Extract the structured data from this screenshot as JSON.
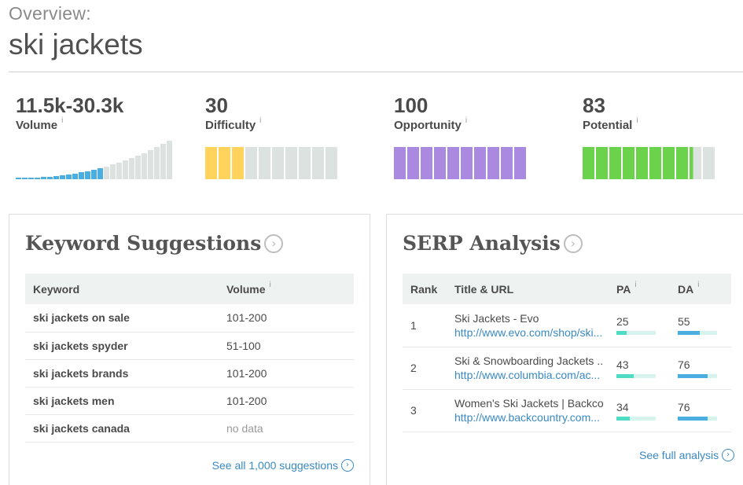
{
  "header": {
    "overview_label": "Overview:",
    "keyword": "ski jackets"
  },
  "metrics": {
    "volume": {
      "value": "11.5k-30.3k",
      "label": "Volume",
      "info": "i"
    },
    "difficulty": {
      "value": "30",
      "label": "Difficulty",
      "info": "i",
      "filled_segments": 3,
      "total_segments": 10,
      "color": "#ffd35c"
    },
    "opportunity": {
      "value": "100",
      "label": "Opportunity",
      "info": "i",
      "filled_segments": 10,
      "total_segments": 10,
      "color": "#a98ae0"
    },
    "potential": {
      "value": "83",
      "label": "Potential",
      "info": "i",
      "filled_segments": 8.3,
      "total_segments": 10,
      "color": "#6bd24b"
    }
  },
  "colors": {
    "empty_segment": "#dbe2e0",
    "volume_active": "#4aaee0",
    "volume_inactive": "#dbe2e0",
    "link": "#3a89c4",
    "pa_bar": "#4fdcc4",
    "da_bar": "#4aaee0",
    "bar_track": "#d6f3ee"
  },
  "keyword_suggestions": {
    "title": "Keyword Suggestions",
    "columns": [
      "Keyword",
      "Volume"
    ],
    "volume_info": "i",
    "rows": [
      {
        "keyword": "ski jackets on sale",
        "volume": "101-200"
      },
      {
        "keyword": "ski jackets spyder",
        "volume": "51-100"
      },
      {
        "keyword": "ski jackets brands",
        "volume": "101-200"
      },
      {
        "keyword": "ski jackets men",
        "volume": "101-200"
      },
      {
        "keyword": "ski jackets canada",
        "volume": "no data"
      }
    ],
    "see_all": "See all 1,000 suggestions"
  },
  "serp_analysis": {
    "title": "SERP Analysis",
    "columns": [
      "Rank",
      "Title & URL",
      "PA",
      "DA"
    ],
    "pa_info": "i",
    "da_info": "i",
    "rows": [
      {
        "rank": "1",
        "title": "Ski Jackets - Evo",
        "url": "http://www.evo.com/shop/ski...",
        "pa": "25",
        "da": "55"
      },
      {
        "rank": "2",
        "title": "Ski & Snowboarding Jackets ...",
        "url": "http://www.columbia.com/ac...",
        "pa": "43",
        "da": "76"
      },
      {
        "rank": "3",
        "title": "Women's Ski Jackets | Backco...",
        "url": "http://www.backcountry.com...",
        "pa": "34",
        "da": "76"
      }
    ],
    "see_all": "See full analysis"
  }
}
